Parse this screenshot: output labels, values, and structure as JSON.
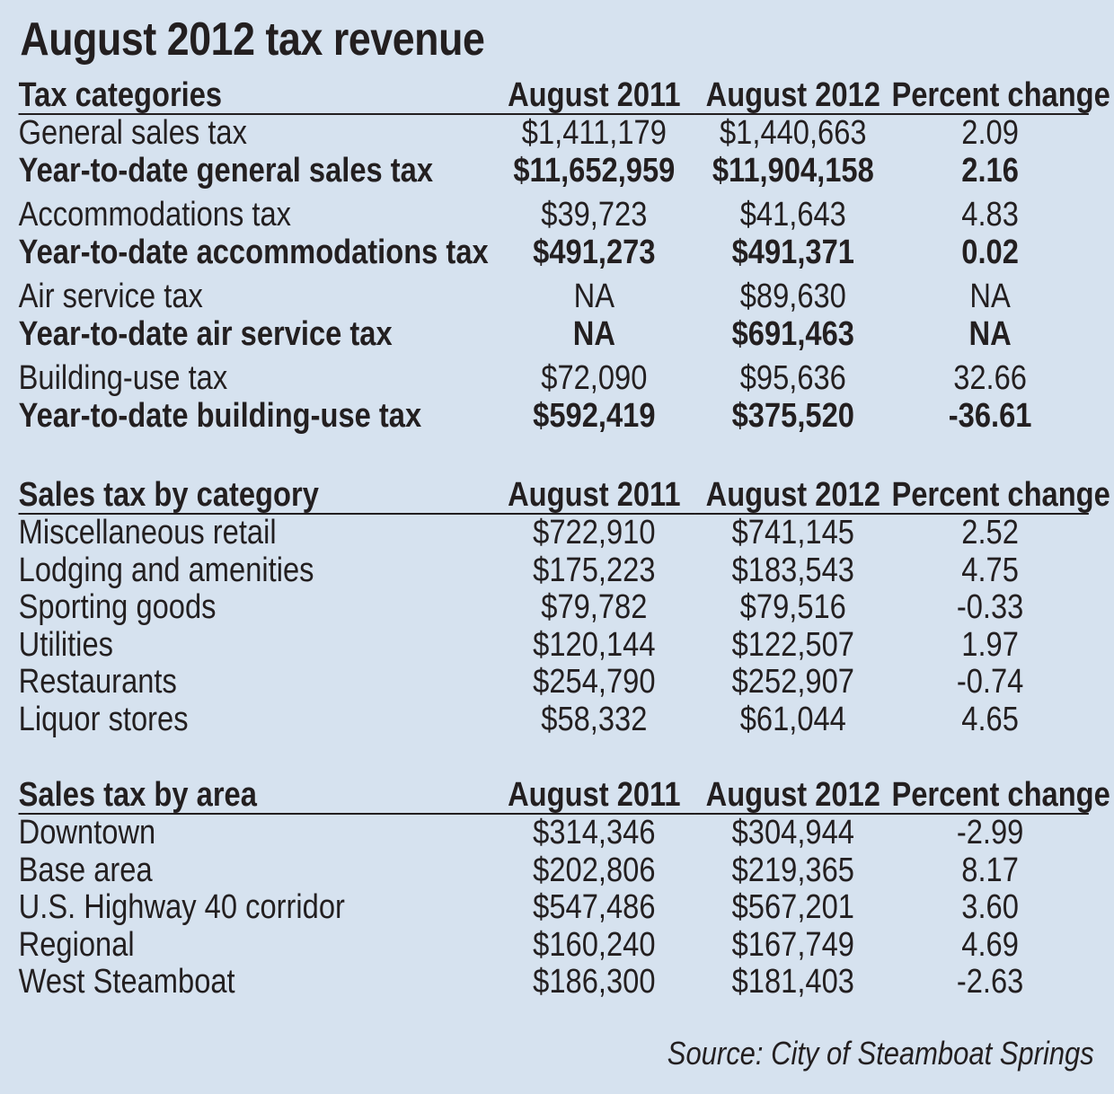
{
  "title": "August 2012 tax revenue",
  "source": "Source: City of Steamboat Springs",
  "sections": [
    {
      "header": [
        "Tax categories",
        "August 2011",
        "August 2012",
        "Percent change"
      ],
      "rows": [
        {
          "label": "General sales tax",
          "a2011": "$1,411,179",
          "a2012": "$1,440,663",
          "pct": "2.09",
          "bold": false,
          "gap": false
        },
        {
          "label": "Year-to-date general sales tax",
          "a2011": "$11,652,959",
          "a2012": "$11,904,158",
          "pct": "2.16",
          "bold": true,
          "gap": false
        },
        {
          "label": "Accommodations tax",
          "a2011": "$39,723",
          "a2012": "$41,643",
          "pct": "4.83",
          "bold": false,
          "gap": true
        },
        {
          "label": "Year-to-date accommodations tax",
          "a2011": "$491,273",
          "a2012": "$491,371",
          "pct": "0.02",
          "bold": true,
          "gap": false
        },
        {
          "label": "Air service tax",
          "a2011": "NA",
          "a2012": "$89,630",
          "pct": "NA",
          "bold": false,
          "gap": true
        },
        {
          "label": "Year-to-date air service tax",
          "a2011": "NA",
          "a2012": "$691,463",
          "pct": "NA",
          "bold": true,
          "gap": false
        },
        {
          "label": "Building-use tax",
          "a2011": "$72,090",
          "a2012": "$95,636",
          "pct": "32.66",
          "bold": false,
          "gap": true
        },
        {
          "label": "Year-to-date building-use tax",
          "a2011": "$592,419",
          "a2012": "$375,520",
          "pct": "-36.61",
          "bold": true,
          "gap": false
        }
      ]
    },
    {
      "header": [
        "Sales tax by category",
        "August 2011",
        "August 2012",
        "Percent change"
      ],
      "rows": [
        {
          "label": "Miscellaneous retail",
          "a2011": "$722,910",
          "a2012": "$741,145",
          "pct": "2.52",
          "bold": false,
          "gap": false
        },
        {
          "label": "Lodging and amenities",
          "a2011": "$175,223",
          "a2012": "$183,543",
          "pct": "4.75",
          "bold": false,
          "gap": false
        },
        {
          "label": "Sporting goods",
          "a2011": "$79,782",
          "a2012": "$79,516",
          "pct": "-0.33",
          "bold": false,
          "gap": false
        },
        {
          "label": "Utilities",
          "a2011": "$120,144",
          "a2012": "$122,507",
          "pct": "1.97",
          "bold": false,
          "gap": false
        },
        {
          "label": "Restaurants",
          "a2011": "$254,790",
          "a2012": "$252,907",
          "pct": "-0.74",
          "bold": false,
          "gap": false
        },
        {
          "label": "Liquor stores",
          "a2011": "$58,332",
          "a2012": "$61,044",
          "pct": "4.65",
          "bold": false,
          "gap": false
        }
      ]
    },
    {
      "header": [
        "Sales tax by area",
        "August 2011",
        "August 2012",
        "Percent change"
      ],
      "rows": [
        {
          "label": "Downtown",
          "a2011": "$314,346",
          "a2012": "$304,944",
          "pct": "-2.99",
          "bold": false,
          "gap": false
        },
        {
          "label": "Base area",
          "a2011": "$202,806",
          "a2012": "$219,365",
          "pct": "8.17",
          "bold": false,
          "gap": false
        },
        {
          "label": "U.S. Highway 40 corridor",
          "a2011": "$547,486",
          "a2012": "$567,201",
          "pct": "3.60",
          "bold": false,
          "gap": false
        },
        {
          "label": "Regional",
          "a2011": "$160,240",
          "a2012": "$167,749",
          "pct": "4.69",
          "bold": false,
          "gap": false
        },
        {
          "label": "West Steamboat",
          "a2011": "$186,300",
          "a2012": "$181,403",
          "pct": "-2.63",
          "bold": false,
          "gap": false
        }
      ]
    }
  ]
}
